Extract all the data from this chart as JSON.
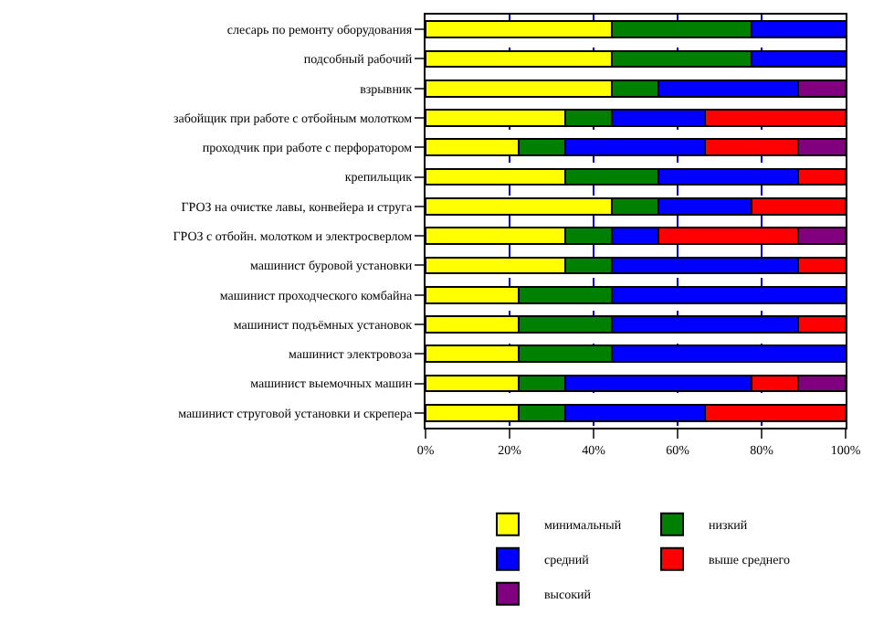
{
  "chart_data": {
    "type": "bar",
    "orientation": "horizontal",
    "stacked": true,
    "categories": [
      "слесарь по ремонту оборудования",
      "подсобный рабочий",
      "взрывник",
      "забойщик при работе с отбойным молотком",
      "проходчик при работе с перфоратором",
      "крепильщик",
      "ГРОЗ на очистке лавы, конвейера и струга",
      "ГРОЗ с отбойн. молотком и электросверлом",
      "машинист буровой установки",
      "машинист проходческого комбайна",
      "машинист подъёмных установок",
      "машинист электровоза",
      "машинист выемочных машин",
      "машинист струговой установки и скрепера"
    ],
    "series": [
      {
        "name": "минимальный",
        "color": "#ffff00",
        "values": [
          44.4,
          44.4,
          44.4,
          33.3,
          22.2,
          33.3,
          44.4,
          33.3,
          33.3,
          22.2,
          22.2,
          22.2,
          22.2,
          22.2
        ]
      },
      {
        "name": "низкий",
        "color": "#008000",
        "values": [
          33.3,
          33.3,
          11.1,
          11.1,
          11.1,
          22.2,
          11.1,
          11.1,
          11.1,
          22.2,
          22.2,
          22.2,
          11.1,
          11.1
        ]
      },
      {
        "name": "средний",
        "color": "#0000ff",
        "values": [
          22.2,
          22.2,
          33.3,
          22.2,
          33.3,
          33.3,
          22.2,
          11.1,
          44.4,
          55.6,
          44.4,
          55.6,
          44.4,
          33.3
        ]
      },
      {
        "name": "выше среднего",
        "color": "#ff0000",
        "values": [
          null,
          null,
          null,
          33.3,
          22.2,
          11.1,
          22.2,
          33.3,
          11.1,
          null,
          11.1,
          null,
          11.1,
          33.3
        ]
      },
      {
        "name": "высокий",
        "color": "#800080",
        "values": [
          null,
          null,
          11.1,
          null,
          11.1,
          null,
          null,
          11.1,
          null,
          null,
          null,
          null,
          11.1,
          null
        ]
      }
    ],
    "xlim": [
      0,
      100
    ],
    "xticks": [
      {
        "value": 0,
        "label": "0%"
      },
      {
        "value": 20,
        "label": "20%"
      },
      {
        "value": 40,
        "label": "40%"
      },
      {
        "value": 60,
        "label": "60%"
      },
      {
        "value": 80,
        "label": "80%"
      },
      {
        "value": 100,
        "label": "100%"
      }
    ],
    "grid": "x",
    "legend": "bottom"
  }
}
